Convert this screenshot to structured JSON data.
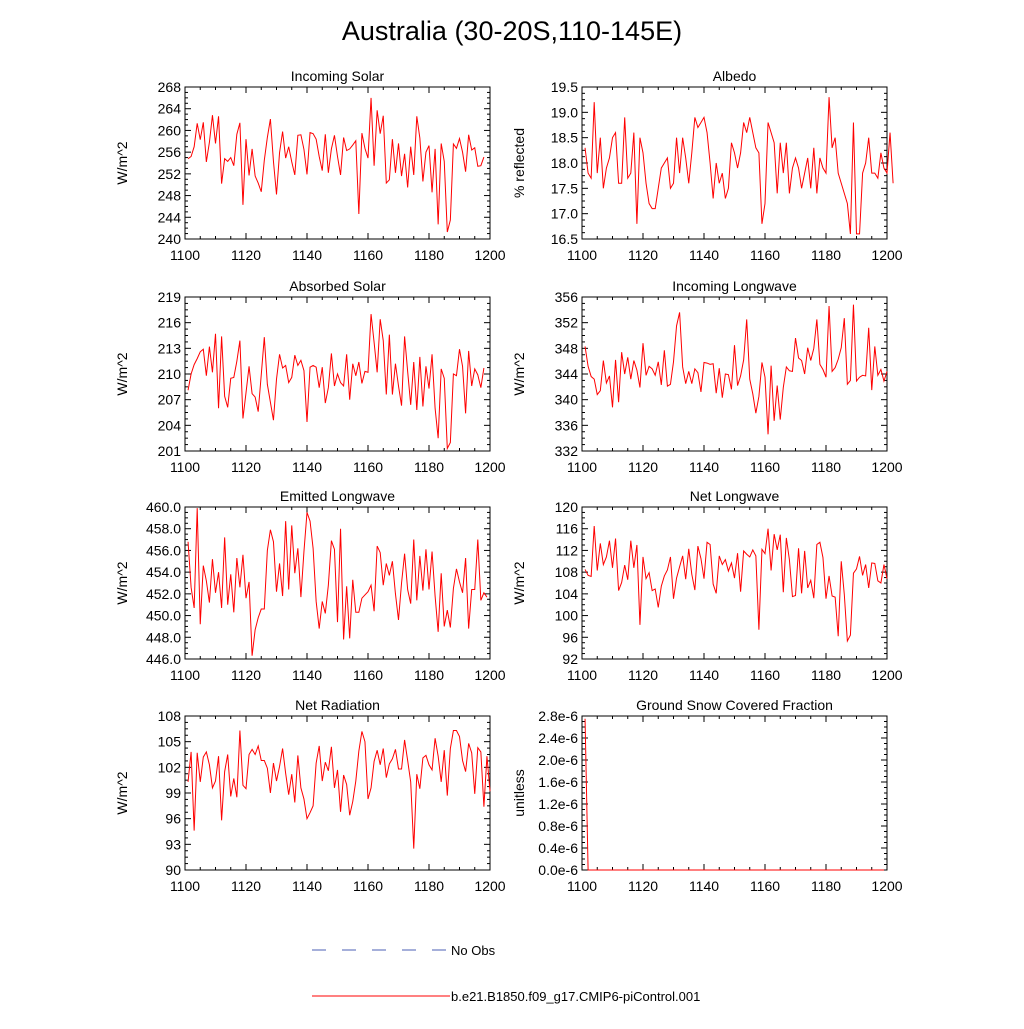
{
  "figure": {
    "title": "Australia (30-20S,110-145E)"
  },
  "legend": {
    "items": [
      {
        "label": "No Obs",
        "color": "#4b5fb4",
        "style": "dashed"
      },
      {
        "label": "b.e21.B1850.f09_g17.CMIP6-piControl.001",
        "color": "#ff0000",
        "style": "solid"
      }
    ]
  },
  "chart_data": [
    {
      "type": "line",
      "title": "Incoming Solar",
      "ylabel": "W/m^2",
      "xlabel": "",
      "xlim": [
        1100,
        1200
      ],
      "ylim": [
        240,
        268
      ],
      "xticks": [
        1100,
        1120,
        1140,
        1160,
        1180,
        1200
      ],
      "yticks": [
        240,
        244,
        248,
        252,
        256,
        260,
        264,
        268
      ],
      "ytick_labels": [
        "240",
        "244",
        "248",
        "252",
        "256",
        "260",
        "264",
        "268"
      ],
      "series": [
        {
          "name": "b.e21.B1850.f09_g17.CMIP6-piControl.001",
          "color": "#ff0000",
          "x_start": 1101,
          "values": [
            254.8,
            255.2,
            257.0,
            261.3,
            258.3,
            261.5,
            254.2,
            257.8,
            262.8,
            257.6,
            262.6,
            250.2,
            254.8,
            254.3,
            255.0,
            253.5,
            259.3,
            261.4,
            246.3,
            258.4,
            251.7,
            256.6,
            251.6,
            250.3,
            248.7,
            254.5,
            258.7,
            262.1,
            254.3,
            248.2,
            255.9,
            259.8,
            254.9,
            257.0,
            254.2,
            251.8,
            259.1,
            259.2,
            256.5,
            251.9,
            259.6,
            259.4,
            258.4,
            255.2,
            252.6,
            259.3,
            252.2,
            256.6,
            259.1,
            255.2,
            251.8,
            258.7,
            256.3,
            256.6,
            257.3,
            258.1,
            244.6,
            259.5,
            256.7,
            254.9,
            266.0,
            253.5,
            263.7,
            259.4,
            262.7,
            250.3,
            250.9,
            258.4,
            252.2,
            257.6,
            251.6,
            255.7,
            249.5,
            257.0,
            251.8,
            262.6,
            258.6,
            250.6,
            256.0,
            257.2,
            248.6,
            256.6,
            242.7,
            257.6,
            254.3,
            241.3,
            243.5,
            257.5,
            256.7,
            258.5,
            256.0,
            252.4,
            259.2,
            256.4,
            256.8,
            253.4,
            253.5,
            255.1
          ]
        }
      ]
    },
    {
      "type": "line",
      "title": "Albedo",
      "ylabel": "% reflected",
      "xlabel": "",
      "xlim": [
        1100,
        1200
      ],
      "ylim": [
        16.5,
        19.5
      ],
      "xticks": [
        1100,
        1120,
        1140,
        1160,
        1180,
        1200
      ],
      "yticks": [
        16.5,
        17.0,
        17.5,
        18.0,
        18.5,
        19.0,
        19.5
      ],
      "ytick_labels": [
        "16.5",
        "17.0",
        "17.5",
        "18.0",
        "18.5",
        "19.0",
        "19.5"
      ],
      "series": [
        {
          "name": "b.e21.B1850.f09_g17.CMIP6-piControl.001",
          "color": "#ff0000",
          "x_start": 1101,
          "values": [
            18.3,
            17.8,
            17.7,
            19.2,
            17.8,
            18.5,
            17.5,
            17.9,
            18.1,
            18.5,
            18.6,
            17.6,
            17.6,
            18.9,
            17.7,
            17.8,
            18.6,
            16.8,
            18.5,
            18.2,
            17.6,
            17.2,
            17.1,
            17.1,
            17.5,
            17.9,
            18.0,
            18.1,
            17.5,
            17.6,
            18.5,
            17.8,
            18.5,
            18.1,
            17.6,
            18.2,
            18.9,
            18.7,
            18.8,
            18.9,
            18.6,
            18.0,
            17.3,
            18.0,
            17.6,
            17.8,
            17.3,
            17.5,
            18.4,
            18.2,
            17.9,
            18.2,
            18.8,
            18.6,
            18.9,
            18.6,
            18.3,
            18.2,
            16.8,
            17.2,
            18.8,
            18.6,
            18.4,
            17.4,
            18.4,
            17.8,
            18.4,
            17.4,
            17.9,
            18.1,
            17.9,
            17.5,
            17.8,
            18.1,
            17.5,
            18.3,
            17.4,
            18.1,
            17.9,
            17.8,
            19.3,
            18.3,
            18.5,
            17.8,
            17.6,
            17.4,
            17.2,
            16.6,
            18.8,
            16.6,
            16.6,
            17.8,
            18.0,
            18.5,
            17.8,
            17.8,
            17.7,
            18.2,
            17.9,
            17.8,
            18.6,
            17.6
          ]
        }
      ]
    },
    {
      "type": "line",
      "title": "Absorbed Solar",
      "ylabel": "W/m^2",
      "xlabel": "",
      "xlim": [
        1100,
        1200
      ],
      "ylim": [
        201,
        219
      ],
      "xticks": [
        1100,
        1120,
        1140,
        1160,
        1180,
        1200
      ],
      "yticks": [
        201,
        204,
        207,
        210,
        213,
        216,
        219
      ],
      "ytick_labels": [
        "201",
        "204",
        "207",
        "210",
        "213",
        "216",
        "219"
      ],
      "series": [
        {
          "name": "b.e21.B1850.f09_g17.CMIP6-piControl.001",
          "color": "#ff0000",
          "x_start": 1101,
          "values": [
            208.1,
            210.0,
            211.1,
            211.8,
            212.6,
            212.9,
            209.8,
            213.2,
            210.2,
            214.7,
            206.0,
            214.4,
            207.4,
            206.1,
            209.5,
            209.6,
            211.5,
            213.9,
            204.8,
            207.8,
            210.9,
            207.7,
            207.3,
            205.6,
            209.9,
            214.3,
            208.8,
            206.7,
            204.6,
            209.4,
            212.3,
            210.7,
            211.0,
            209.0,
            209.6,
            212.2,
            211.0,
            211.6,
            210.4,
            204.4,
            210.8,
            211.0,
            210.8,
            208.4,
            210.8,
            206.6,
            208.4,
            212.4,
            208.6,
            210.0,
            209.0,
            208.6,
            212.3,
            207.0,
            211.2,
            209.8,
            211.4,
            208.9,
            210.3,
            210.2,
            217.0,
            213.7,
            210.2,
            216.4,
            213.9,
            207.6,
            214.6,
            207.6,
            211.2,
            208.6,
            206.3,
            214.4,
            210.3,
            206.4,
            211.4,
            205.8,
            212.0,
            206.2,
            210.9,
            208.3,
            212.3,
            206.0,
            202.5,
            210.6,
            209.5,
            201.3,
            202.0,
            210.0,
            209.8,
            212.9,
            210.9,
            205.4,
            212.7,
            208.6,
            210.6,
            209.9,
            208.4,
            210.7
          ]
        }
      ]
    },
    {
      "type": "line",
      "title": "Incoming Longwave",
      "ylabel": "W/m^2",
      "xlabel": "",
      "xlim": [
        1100,
        1200
      ],
      "ylim": [
        332,
        356
      ],
      "xticks": [
        1100,
        1120,
        1140,
        1160,
        1180,
        1200
      ],
      "yticks": [
        332,
        336,
        340,
        344,
        348,
        352,
        356
      ],
      "ytick_labels": [
        "332",
        "336",
        "340",
        "344",
        "348",
        "352",
        "356"
      ],
      "series": [
        {
          "name": "b.e21.B1850.f09_g17.CMIP6-piControl.001",
          "color": "#ff0000",
          "x_start": 1101,
          "values": [
            348.3,
            345.2,
            343.6,
            343.2,
            340.8,
            341.4,
            346.1,
            342.6,
            343.7,
            338.8,
            346.2,
            339.6,
            347.4,
            344.0,
            346.6,
            343.2,
            346.1,
            344.6,
            341.9,
            348.8,
            343.8,
            345.2,
            344.8,
            343.8,
            345.9,
            342.3,
            347.7,
            342.1,
            342.4,
            345.9,
            351.5,
            353.6,
            345.1,
            342.5,
            344.4,
            342.5,
            344.8,
            344.2,
            341.2,
            345.8,
            345.7,
            345.5,
            345.6,
            341.0,
            344.9,
            340.3,
            344.0,
            343.9,
            341.6,
            348.5,
            342.2,
            343.7,
            346.2,
            352.5,
            343.2,
            340.9,
            337.9,
            340.5,
            345.8,
            343.5,
            334.6,
            345.3,
            336.7,
            342.2,
            336.9,
            341.9,
            345.1,
            344.5,
            344.4,
            349.6,
            346.5,
            346.1,
            344.0,
            348.1,
            346.1,
            348.0,
            352.5,
            345.5,
            344.7,
            343.5,
            354.6,
            344.4,
            345.0,
            346.3,
            348.1,
            352.7,
            342.4,
            343.0,
            354.8,
            342.9,
            343.5,
            343.8,
            343.7,
            351.2,
            341.5,
            348.3,
            343.8,
            344.7,
            342.9,
            344.4
          ]
        }
      ]
    },
    {
      "type": "line",
      "title": "Emitted Longwave",
      "ylabel": "W/m^2",
      "xlabel": "",
      "xlim": [
        1100,
        1200
      ],
      "ylim": [
        446,
        460
      ],
      "xticks": [
        1100,
        1120,
        1140,
        1160,
        1180,
        1200
      ],
      "yticks": [
        446,
        448,
        450,
        452,
        454,
        456,
        458,
        460
      ],
      "ytick_labels": [
        "446.0",
        "448.0",
        "450.0",
        "452.0",
        "454.0",
        "456.0",
        "458.0",
        "460.0"
      ],
      "series": [
        {
          "name": "b.e21.B1850.f09_g17.CMIP6-piControl.001",
          "color": "#ff0000",
          "x_start": 1101,
          "values": [
            456.8,
            452.6,
            450.7,
            459.9,
            449.2,
            454.6,
            453.2,
            451.2,
            455.2,
            452.1,
            454.0,
            450.7,
            457.2,
            451.0,
            453.8,
            450.3,
            455.3,
            452.6,
            455.6,
            451.6,
            453.1,
            446.3,
            448.7,
            449.8,
            450.6,
            450.6,
            456.0,
            457.9,
            456.8,
            452.2,
            454.8,
            451.8,
            458.7,
            452.4,
            458.3,
            453.9,
            456.2,
            451.7,
            455.9,
            459.5,
            458.7,
            456.2,
            451.3,
            448.8,
            451.3,
            450.2,
            452.8,
            456.9,
            456.1,
            449.4,
            458.0,
            447.8,
            452.7,
            447.9,
            453.3,
            450.3,
            450.3,
            451.6,
            451.9,
            452.2,
            452.8,
            450.4,
            456.4,
            455.8,
            452.8,
            454.8,
            453.7,
            455.0,
            452.0,
            449.6,
            453.0,
            455.7,
            452.4,
            451.1,
            457.0,
            451.4,
            455.5,
            452.3,
            456.1,
            452.4,
            455.9,
            451.8,
            448.5,
            453.9,
            449.0,
            450.5,
            448.9,
            452.5,
            454.3,
            453.1,
            452.1,
            455.3,
            448.8,
            452.4,
            452.4,
            457.0,
            451.4,
            452.1,
            451.7
          ]
        }
      ]
    },
    {
      "type": "line",
      "title": "Net Longwave",
      "ylabel": "W/m^2",
      "xlabel": "",
      "xlim": [
        1100,
        1200
      ],
      "ylim": [
        92,
        120
      ],
      "xticks": [
        1100,
        1120,
        1140,
        1160,
        1180,
        1200
      ],
      "yticks": [
        92,
        96,
        100,
        104,
        108,
        112,
        116,
        120
      ],
      "ytick_labels": [
        "92",
        "96",
        "100",
        "104",
        "108",
        "112",
        "116",
        "120"
      ],
      "series": [
        {
          "name": "b.e21.B1850.f09_g17.CMIP6-piControl.001",
          "color": "#ff0000",
          "x_start": 1101,
          "values": [
            108.5,
            107.4,
            107.2,
            116.5,
            108.3,
            113.3,
            109.4,
            110.8,
            113.8,
            108.8,
            114.2,
            104.6,
            106.1,
            109.3,
            106.6,
            113.8,
            108.8,
            113.0,
            98.3,
            110.8,
            106.8,
            107.9,
            104.6,
            104.9,
            101.5,
            105.4,
            107.3,
            108.4,
            110.8,
            103.1,
            106.9,
            109.0,
            111.0,
            106.7,
            112.3,
            107.6,
            104.7,
            112.8,
            110.5,
            106.8,
            113.5,
            113.1,
            105.8,
            104.1,
            111.0,
            109.4,
            110.3,
            108.2,
            109.7,
            106.9,
            111.5,
            104.4,
            111.9,
            111.3,
            110.8,
            112.1,
            111.0,
            97.4,
            112.2,
            111.4,
            116.0,
            108.3,
            115.0,
            112.1,
            114.9,
            104.3,
            114.3,
            110.3,
            103.5,
            103.7,
            112.4,
            104.1,
            111.9,
            105.1,
            106.5,
            103.2,
            113.1,
            113.5,
            110.7,
            103.1,
            107.3,
            103.6,
            103.4,
            96.2,
            110.0,
            103.9,
            95.3,
            96.4,
            107.8,
            108.6,
            110.9,
            107.4,
            109.4,
            105.1,
            109.7,
            109.6,
            106.4,
            106.0,
            109.4,
            106.8
          ]
        }
      ]
    },
    {
      "type": "line",
      "title": "Net Radiation",
      "ylabel": "W/m^2",
      "xlabel": "",
      "xlim": [
        1100,
        1200
      ],
      "ylim": [
        90,
        108
      ],
      "xticks": [
        1100,
        1120,
        1140,
        1160,
        1180,
        1200
      ],
      "yticks": [
        90,
        93,
        96,
        99,
        102,
        105,
        108
      ],
      "ytick_labels": [
        "90",
        "93",
        "96",
        "99",
        "102",
        "105",
        "108"
      ],
      "series": [
        {
          "name": "b.e21.B1850.f09_g17.CMIP6-piControl.001",
          "color": "#ff0000",
          "x_start": 1101,
          "values": [
            100.3,
            103.8,
            94.6,
            103.7,
            100.3,
            103.2,
            103.8,
            102.3,
            99.6,
            100.4,
            103.3,
            95.8,
            101.5,
            103.5,
            98.6,
            100.7,
            98.5,
            106.3,
            99.9,
            99.5,
            103.5,
            104.1,
            103.5,
            104.5,
            102.8,
            102.8,
            101.9,
            99.0,
            102.5,
            100.4,
            102.1,
            104.2,
            101.3,
            98.8,
            101.2,
            97.9,
            103.4,
            99.6,
            98.3,
            96.0,
            96.7,
            97.5,
            102.5,
            104.5,
            100.4,
            102.6,
            101.6,
            104.4,
            99.6,
            101.7,
            96.8,
            101.1,
            100.0,
            96.4,
            98.0,
            100.4,
            103.9,
            106.2,
            105.0,
            98.3,
            99.6,
            102.7,
            104.0,
            102.3,
            104.2,
            100.8,
            102.4,
            103.0,
            104.1,
            101.8,
            101.8,
            105.2,
            102.8,
            100.3,
            92.5,
            101.2,
            99.5,
            103.1,
            103.4,
            102.3,
            101.7,
            105.4,
            103.3,
            100.3,
            104.0,
            98.7,
            104.2,
            106.3,
            106.3,
            105.6,
            102.8,
            101.5,
            104.8,
            103.7,
            98.9,
            104.3,
            103.8,
            97.4,
            103.3,
            99.2
          ]
        }
      ]
    },
    {
      "type": "line",
      "title": "Ground Snow Covered Fraction",
      "ylabel": "unitless",
      "xlabel": "",
      "xlim": [
        1100,
        1200
      ],
      "ylim": [
        0,
        2.8e-06
      ],
      "xticks": [
        1100,
        1120,
        1140,
        1160,
        1180,
        1200
      ],
      "yticks": [
        0,
        4e-07,
        8e-07,
        1.2e-06,
        1.6e-06,
        2e-06,
        2.4e-06,
        2.8e-06
      ],
      "ytick_labels": [
        "0.0e-6",
        "0.4e-6",
        "0.8e-6",
        "1.2e-6",
        "1.6e-6",
        "2.0e-6",
        "2.4e-6",
        "2.8e-6"
      ],
      "series": [
        {
          "name": "b.e21.B1850.f09_g17.CMIP6-piControl.001",
          "color": "#ff0000",
          "x": [
            1101,
            1102,
            1199
          ],
          "values": [
            2.75e-06,
            0,
            0
          ]
        }
      ]
    }
  ]
}
